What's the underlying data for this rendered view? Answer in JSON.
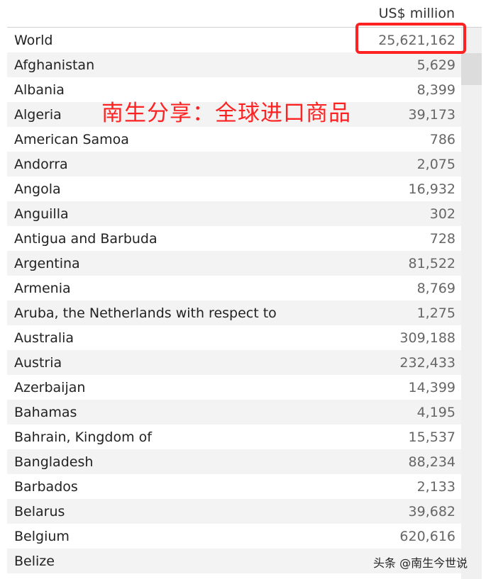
{
  "header": {
    "column": "US$ million"
  },
  "rows": [
    {
      "name": "World",
      "value": "25,621,162"
    },
    {
      "name": "Afghanistan",
      "value": "5,629"
    },
    {
      "name": "Albania",
      "value": "8,399"
    },
    {
      "name": "Algeria",
      "value": "39,173"
    },
    {
      "name": "American Samoa",
      "value": "786"
    },
    {
      "name": "Andorra",
      "value": "2,075"
    },
    {
      "name": "Angola",
      "value": "16,932"
    },
    {
      "name": "Anguilla",
      "value": "302"
    },
    {
      "name": "Antigua and Barbuda",
      "value": "728"
    },
    {
      "name": "Argentina",
      "value": "81,522"
    },
    {
      "name": "Armenia",
      "value": "8,769"
    },
    {
      "name": "Aruba, the Netherlands with respect to",
      "value": "1,275"
    },
    {
      "name": "Australia",
      "value": "309,188"
    },
    {
      "name": "Austria",
      "value": "232,433"
    },
    {
      "name": "Azerbaijan",
      "value": "14,399"
    },
    {
      "name": "Bahamas",
      "value": "4,195"
    },
    {
      "name": "Bahrain, Kingdom of",
      "value": "15,537"
    },
    {
      "name": "Bangladesh",
      "value": "88,234"
    },
    {
      "name": "Barbados",
      "value": "2,133"
    },
    {
      "name": "Belarus",
      "value": "39,682"
    },
    {
      "name": "Belgium",
      "value": "620,616"
    },
    {
      "name": "Belize",
      "value": ""
    }
  ],
  "overlay_text": "南生分享：全球进口商品",
  "watermark": "头条 @南生今世说",
  "colors": {
    "highlight": "#ff2222",
    "row_alt": "#f3f3f3"
  }
}
